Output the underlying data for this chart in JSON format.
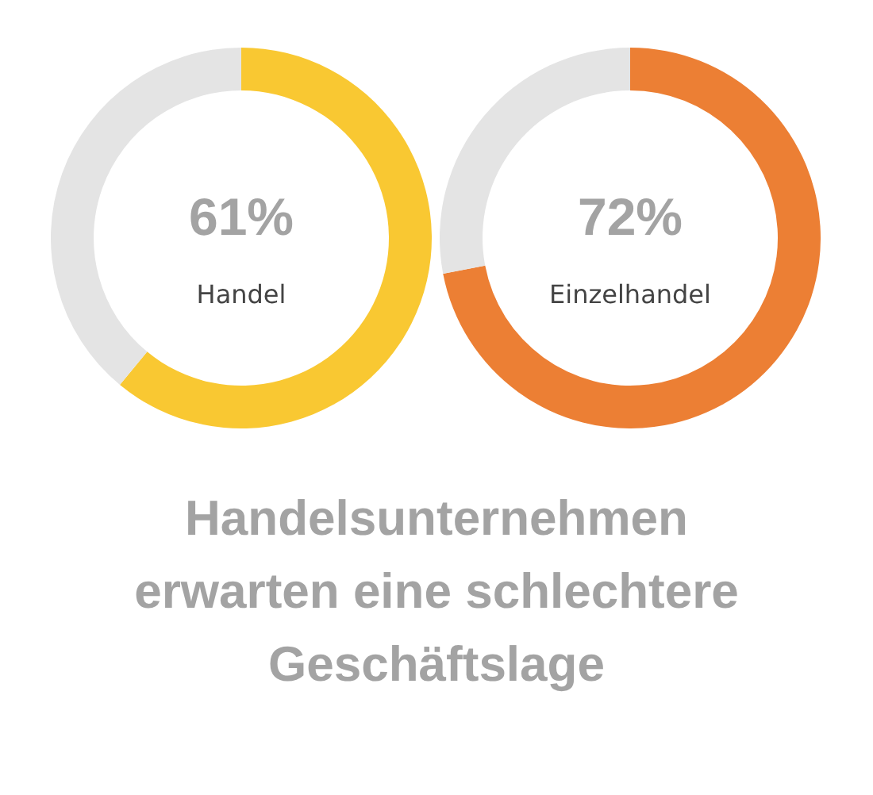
{
  "chart_data": [
    {
      "type": "donut",
      "categories": [
        "Handel",
        null
      ],
      "values": [
        61,
        39
      ],
      "colors": [
        "#f9c832",
        "#e4e4e4"
      ],
      "value_labels": [
        "61%",
        null
      ]
    },
    {
      "type": "donut",
      "categories": [
        "Einzelhandel",
        null
      ],
      "values": [
        72,
        28
      ],
      "colors": [
        "#ec7f34",
        "#e4e4e4"
      ],
      "value_labels": [
        "72%",
        null
      ]
    },
    {
      "type": "other",
      "title": "Handelsunternehmen erwarten eine schlechtere Geschäftslage"
    }
  ]
}
